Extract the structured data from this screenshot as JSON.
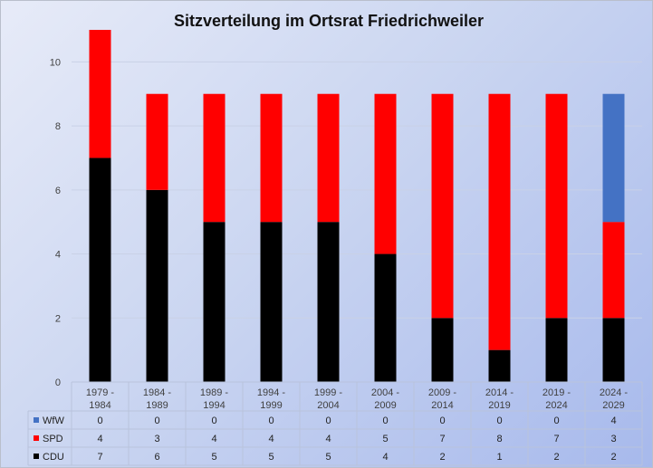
{
  "chart_data": {
    "type": "bar",
    "stacked": true,
    "title": "Sitzverteilung im Ortsrat Friedrichweiler",
    "xlabel": "",
    "ylabel": "",
    "ylim": [
      0,
      11
    ],
    "yticks": [
      0,
      2,
      4,
      6,
      8,
      10
    ],
    "grid": true,
    "legend": "data-table-left",
    "categories": [
      [
        "1979 -",
        "1984"
      ],
      [
        "1984 -",
        "1989"
      ],
      [
        "1989 -",
        "1994"
      ],
      [
        "1994 -",
        "1999"
      ],
      [
        "1999 -",
        "2004"
      ],
      [
        "2004 -",
        "2009"
      ],
      [
        "2009 -",
        "2014"
      ],
      [
        "2014 -",
        "2019"
      ],
      [
        "2019 -",
        "2024"
      ],
      [
        "2024 -",
        "2029"
      ]
    ],
    "series": [
      {
        "name": "CDU",
        "color": "#000000",
        "values": [
          7,
          6,
          5,
          5,
          5,
          4,
          2,
          1,
          2,
          2
        ]
      },
      {
        "name": "SPD",
        "color": "#ff0000",
        "values": [
          4,
          3,
          4,
          4,
          4,
          5,
          7,
          8,
          7,
          3
        ]
      },
      {
        "name": "WfW",
        "color": "#4472c4",
        "values": [
          0,
          0,
          0,
          0,
          0,
          0,
          0,
          0,
          0,
          4
        ]
      }
    ],
    "table_row_order": [
      "WfW",
      "SPD",
      "CDU"
    ]
  }
}
